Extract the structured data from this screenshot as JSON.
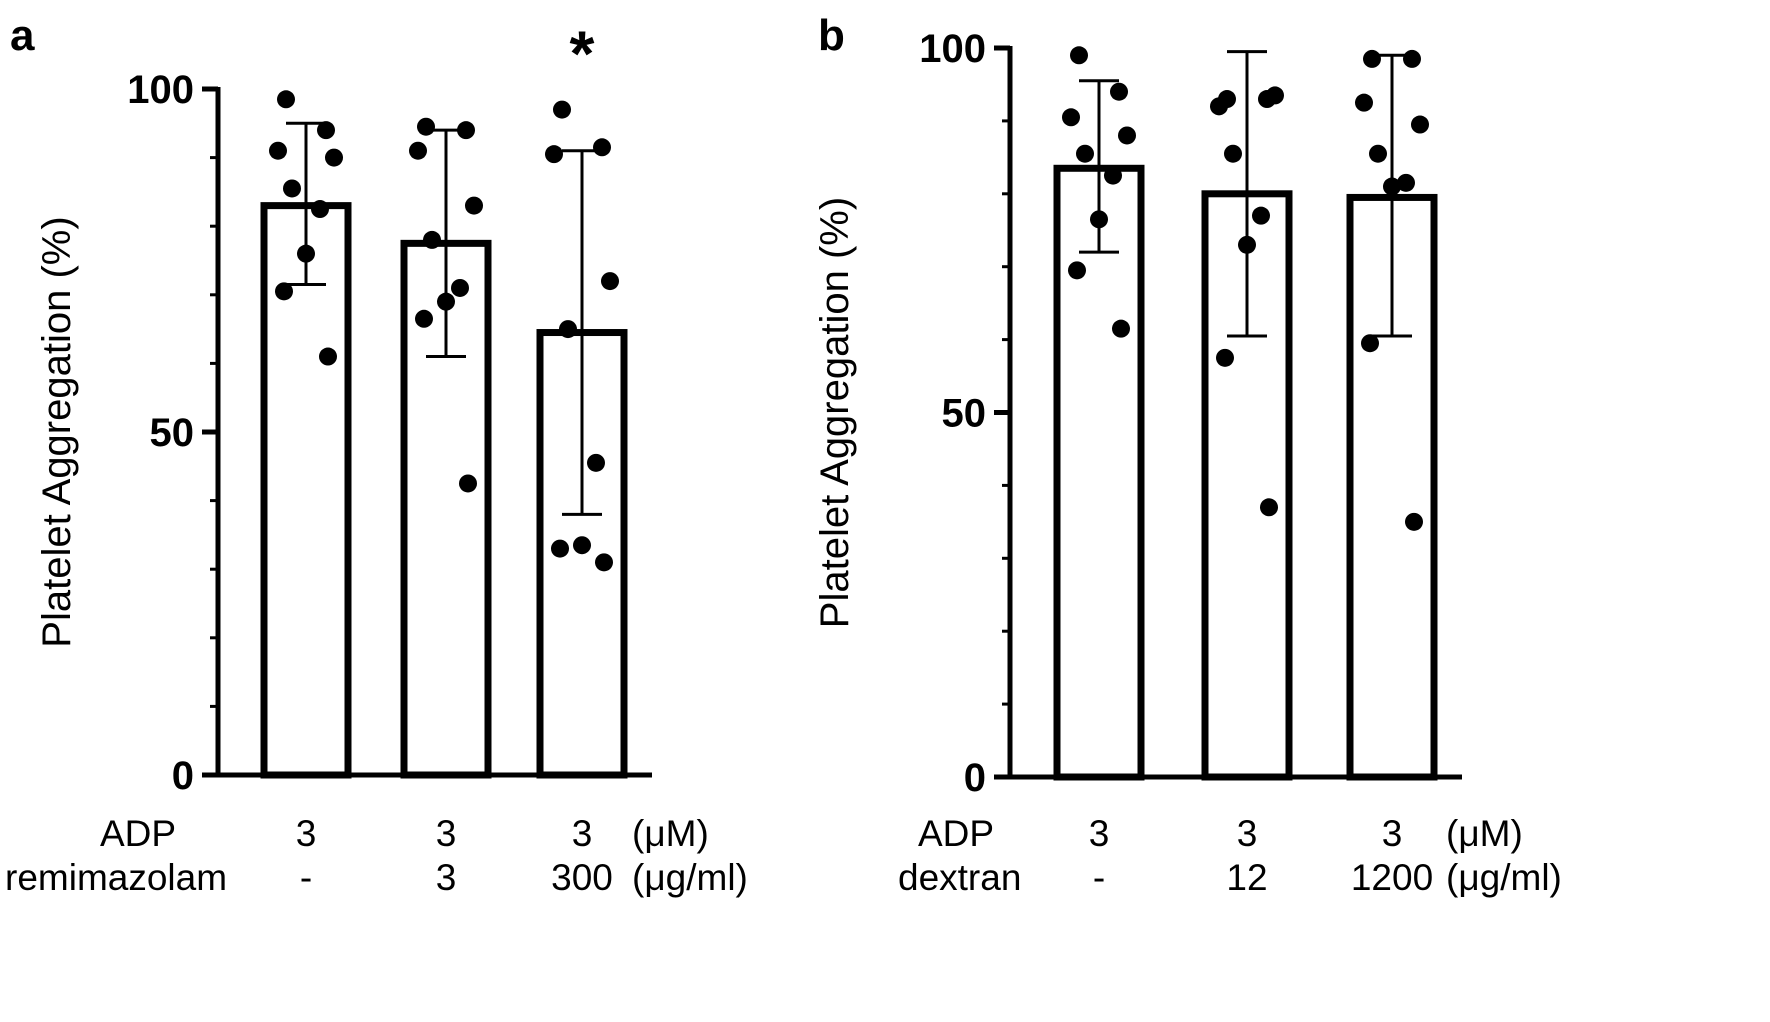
{
  "chart_data": [
    {
      "panel": "a",
      "type": "bar",
      "ylabel": "Platelet Aggregation  (%)",
      "ylim": [
        0,
        100
      ],
      "yticks": [
        0,
        50,
        100
      ],
      "minor_tick_step": 10,
      "categories": [
        "3 / -",
        "3 / 3",
        "3 / 300"
      ],
      "means": [
        83,
        77.5,
        64.5
      ],
      "sd_upper": [
        95,
        94,
        91
      ],
      "sd_lower": [
        71.5,
        61,
        38
      ],
      "points": [
        [
          98.5,
          94,
          91,
          90,
          85.5,
          82.5,
          76,
          70.5,
          61
        ],
        [
          94.5,
          94,
          91,
          83,
          78,
          71,
          69,
          66.5,
          42.5
        ],
        [
          97,
          91.5,
          90.5,
          72,
          65,
          45.5,
          33.5,
          33,
          31
        ]
      ],
      "significance": [
        "",
        "",
        "*"
      ],
      "conditions": [
        {
          "label": "ADP",
          "values": [
            "3",
            "3",
            "3"
          ],
          "unit": "(μM)"
        },
        {
          "label": "remimazolam",
          "values": [
            "-",
            "3",
            "300"
          ],
          "unit": "(μg/ml)"
        }
      ]
    },
    {
      "panel": "b",
      "type": "bar",
      "ylabel": "Platelet Aggregation  (%)",
      "ylim": [
        0,
        100
      ],
      "yticks": [
        0,
        50,
        100
      ],
      "minor_tick_step": 10,
      "categories": [
        "3 / -",
        "3 / 12",
        "3 / 1200"
      ],
      "means": [
        83.5,
        80,
        79.5
      ],
      "sd_upper": [
        95.5,
        99.5,
        99
      ],
      "sd_lower": [
        72,
        60.5,
        60.5
      ],
      "points": [
        [
          99,
          94,
          90.5,
          88,
          85.5,
          82.5,
          76.5,
          69.5,
          61.5
        ],
        [
          93,
          93,
          92,
          93.5,
          85.5,
          77,
          73,
          57.5,
          37
        ],
        [
          98.5,
          98.5,
          92.5,
          89.5,
          85.5,
          81.5,
          81,
          59.5,
          35
        ]
      ],
      "significance": [
        "",
        "",
        ""
      ],
      "conditions": [
        {
          "label": "ADP",
          "values": [
            "3",
            "3",
            "3"
          ],
          "unit": "(μM)"
        },
        {
          "label": "dextran",
          "values": [
            "-",
            "12",
            "1200"
          ],
          "unit": "(μg/ml)"
        }
      ]
    }
  ]
}
